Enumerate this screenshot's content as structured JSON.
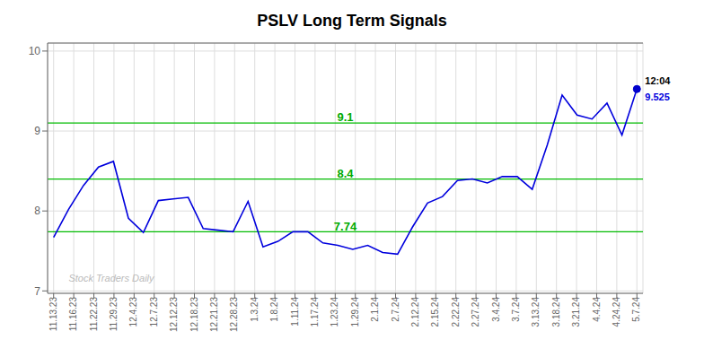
{
  "chart_data": {
    "type": "line",
    "title": "PSLV Long Term Signals",
    "x": [
      0,
      0.7435897435897436,
      1.4871794871794872,
      2.230769230769231,
      2.9743589743589745,
      3.717948717948718,
      4.461538461538462,
      5.205128205128205,
      5.948717948717949,
      6.6923076923076925,
      7.435897435897436,
      8.179487179487179,
      8.923076923076923,
      9.666666666666666,
      10.41025641025641,
      11.153846153846153,
      11.897435897435898,
      12.64102564102564,
      13.384615384615385,
      14.128205128205128,
      14.871794871794872,
      15.615384615384615,
      16.358974358974358,
      17.102564102564102,
      17.846153846153847,
      18.58974358974359,
      19.333333333333332,
      20.076923076923077,
      20.82051282051282,
      21.564102564102566,
      22.307692307692307,
      23.05128205128205,
      23.794871794871796,
      24.53846153846154,
      25.28205128205128,
      26.025641025641026,
      26.76923076923077,
      27.512820512820515,
      28.256410256410255,
      29
    ],
    "series": [
      {
        "color": "#0000dd",
        "values": [
          7.67,
          8.02,
          8.32,
          8.55,
          8.62,
          7.91,
          7.73,
          8.13,
          8.15,
          8.17,
          7.78,
          7.76,
          7.74,
          8.12,
          7.55,
          7.62,
          7.74,
          7.74,
          7.6,
          7.57,
          7.52,
          7.57,
          7.48,
          7.46,
          7.8,
          8.1,
          8.18,
          8.38,
          8.4,
          8.35,
          8.43,
          8.43,
          8.27,
          8.82,
          9.45,
          9.2,
          9.15,
          9.35,
          8.95,
          9.525
        ]
      }
    ],
    "xlim": [
      -0.3,
      29.3
    ],
    "xticks": [
      {
        "value": 0,
        "label": "11.13.23"
      },
      {
        "value": 1,
        "label": "11.16.23"
      },
      {
        "value": 2,
        "label": "11.22.23"
      },
      {
        "value": 3,
        "label": "11.29.23"
      },
      {
        "value": 4,
        "label": "12.4.23"
      },
      {
        "value": 5,
        "label": "12.7.23"
      },
      {
        "value": 6,
        "label": "12.12.23"
      },
      {
        "value": 7,
        "label": "12.18.23"
      },
      {
        "value": 8,
        "label": "12.21.23"
      },
      {
        "value": 9,
        "label": "12.28.23"
      },
      {
        "value": 10,
        "label": "1.3.24"
      },
      {
        "value": 11,
        "label": "1.8.24"
      },
      {
        "value": 12,
        "label": "1.11.24"
      },
      {
        "value": 13,
        "label": "1.17.24"
      },
      {
        "value": 14,
        "label": "1.23.24"
      },
      {
        "value": 15,
        "label": "1.29.24"
      },
      {
        "value": 16,
        "label": "2.1.24"
      },
      {
        "value": 17,
        "label": "2.7.24"
      },
      {
        "value": 18,
        "label": "2.12.24"
      },
      {
        "value": 19,
        "label": "2.15.24"
      },
      {
        "value": 20,
        "label": "2.22.24"
      },
      {
        "value": 21,
        "label": "2.27.24"
      },
      {
        "value": 22,
        "label": "3.4.24"
      },
      {
        "value": 23,
        "label": "3.7.24"
      },
      {
        "value": 24,
        "label": "3.13.24"
      },
      {
        "value": 25,
        "label": "3.18.24"
      },
      {
        "value": 26,
        "label": "3.21.24"
      },
      {
        "value": 27,
        "label": "4.4.24"
      },
      {
        "value": 28,
        "label": "4.24.24"
      },
      {
        "value": 29,
        "label": "5.7.24"
      }
    ],
    "ylim": [
      6.97,
      10.1
    ],
    "yticks": [
      7,
      8,
      9,
      10
    ],
    "grid": true,
    "hlines": [
      {
        "value": 9.1,
        "label": "9.1",
        "color": "#00bb00",
        "label_color": "#00aa00"
      },
      {
        "value": 8.4,
        "label": "8.4",
        "color": "#00bb00",
        "label_color": "#00aa00"
      },
      {
        "value": 7.74,
        "label": "7.74",
        "color": "#00bb00",
        "label_color": "#00aa00"
      }
    ],
    "annotations": [
      {
        "x": 29,
        "y": 9.525,
        "text": "12:04",
        "color": "#000000"
      },
      {
        "x": 29,
        "y": 9.525,
        "text": "9.525",
        "color": "#0000dd",
        "marker": "circle",
        "marker_color": "#0000cc"
      },
      {
        "x": 0.7435897435897436,
        "y": 7.08,
        "text": "Stock Traders Daily",
        "color": "#bbbbbb"
      }
    ]
  }
}
